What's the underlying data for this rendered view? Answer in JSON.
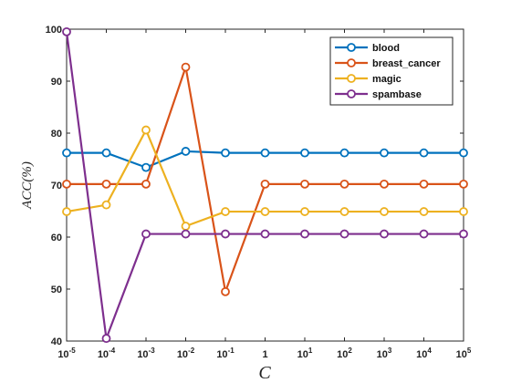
{
  "chart_data": {
    "type": "line",
    "xlabel": "C",
    "ylabel": "ACC(%)",
    "x_ticks": [
      {
        "base": "10",
        "exp": "-5"
      },
      {
        "base": "10",
        "exp": "-4"
      },
      {
        "base": "10",
        "exp": "-3"
      },
      {
        "base": "10",
        "exp": "-2"
      },
      {
        "base": "10",
        "exp": "-1"
      },
      {
        "base": "1",
        "exp": ""
      },
      {
        "base": "10",
        "exp": "1"
      },
      {
        "base": "10",
        "exp": "2"
      },
      {
        "base": "10",
        "exp": "3"
      },
      {
        "base": "10",
        "exp": "4"
      },
      {
        "base": "10",
        "exp": "5"
      }
    ],
    "x": [
      -5,
      -4,
      -3,
      -2,
      -1,
      0,
      1,
      2,
      3,
      4,
      5
    ],
    "x_scale": "log10",
    "ylim": [
      40,
      100
    ],
    "y_ticks": [
      40,
      50,
      60,
      70,
      80,
      90,
      100
    ],
    "grid": false,
    "legend_position": "top-right",
    "series": [
      {
        "name": "blood",
        "color": "#0072BD",
        "values": [
          76.2,
          76.2,
          73.4,
          76.5,
          76.2,
          76.2,
          76.2,
          76.2,
          76.2,
          76.2,
          76.2
        ]
      },
      {
        "name": "breast_cancer",
        "color": "#D95319",
        "values": [
          70.2,
          70.2,
          70.2,
          92.7,
          49.5,
          70.2,
          70.2,
          70.2,
          70.2,
          70.2,
          70.2
        ]
      },
      {
        "name": "magic",
        "color": "#EDB120",
        "values": [
          64.9,
          66.2,
          80.6,
          62.1,
          64.9,
          64.9,
          64.9,
          64.9,
          64.9,
          64.9,
          64.9
        ]
      },
      {
        "name": "spambase",
        "color": "#7E2F8E",
        "values": [
          99.5,
          40.5,
          60.6,
          60.6,
          60.6,
          60.6,
          60.6,
          60.6,
          60.6,
          60.6,
          60.6
        ]
      }
    ]
  }
}
